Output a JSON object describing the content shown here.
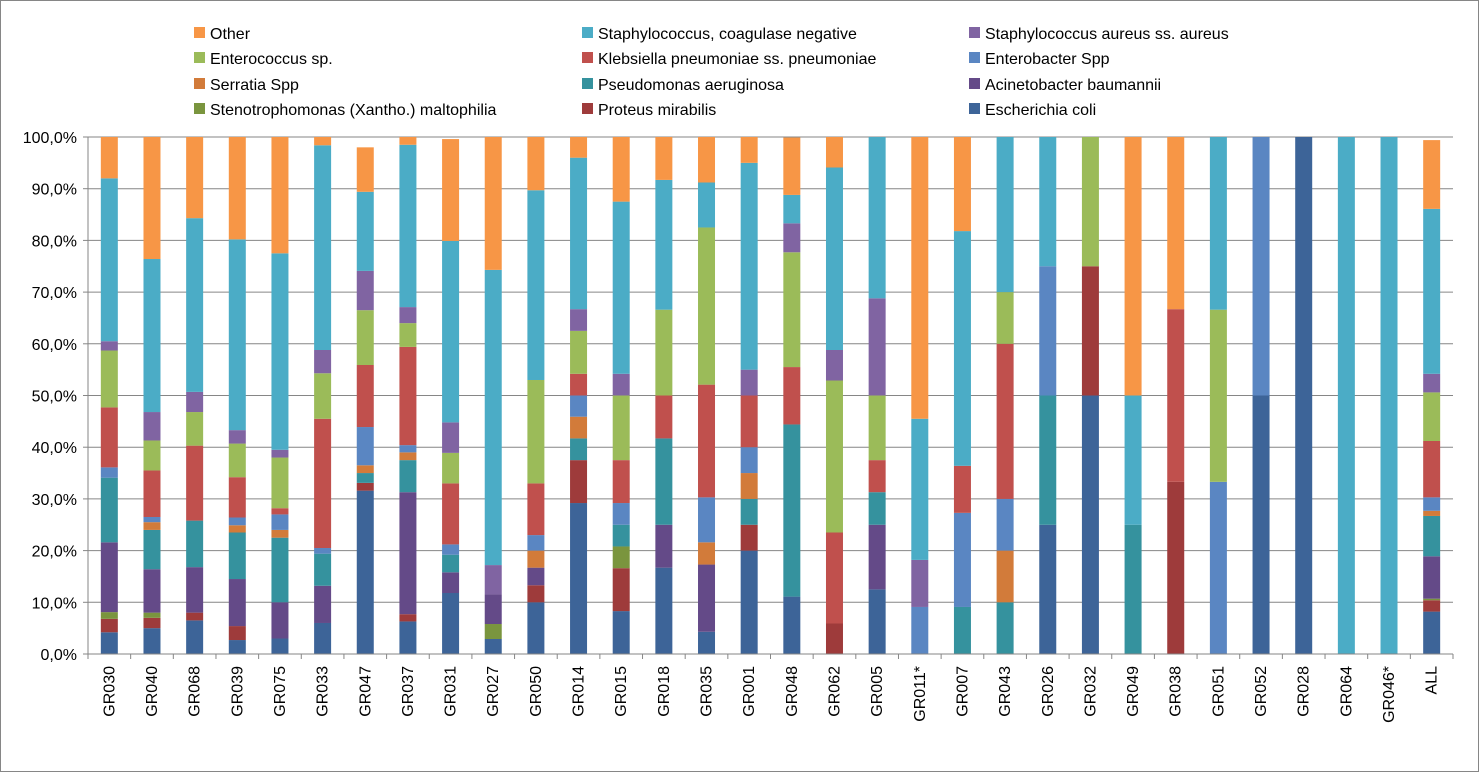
{
  "chart_data": {
    "type": "bar",
    "stacked": true,
    "normalized": true,
    "title": "",
    "xlabel": "",
    "ylabel": "",
    "ylim": [
      0,
      100
    ],
    "y_ticks": [
      "0,0%",
      "10,0%",
      "20,0%",
      "30,0%",
      "40,0%",
      "50,0%",
      "60,0%",
      "70,0%",
      "80,0%",
      "90,0%",
      "100,0%"
    ],
    "grid": true,
    "legend_position": "top",
    "categories": [
      "GR030",
      "GR040",
      "GR068",
      "GR039",
      "GR075",
      "GR033",
      "GR047",
      "GR037",
      "GR031",
      "GR027",
      "GR050",
      "GR014",
      "GR015",
      "GR018",
      "GR035",
      "GR001",
      "GR048",
      "GR062",
      "GR005",
      "GR011*",
      "GR007",
      "GR043",
      "GR026",
      "GR032",
      "GR049",
      "GR038",
      "GR051",
      "GR052",
      "GR028",
      "GR064",
      "GR046*",
      "ALL"
    ],
    "series": [
      {
        "name": "Escherichia coli",
        "color": "#3D6498",
        "values": [
          4.2,
          5.0,
          6.5,
          2.7,
          3.0,
          6.0,
          31.6,
          6.3,
          11.8,
          2.9,
          10.0,
          29.2,
          8.3,
          16.7,
          4.3,
          20.0,
          11.1,
          0.0,
          12.5,
          0.0,
          0.0,
          0.0,
          25.0,
          50.0,
          0.0,
          0.0,
          0.0,
          50.0,
          100.0,
          0.0,
          0.0,
          8.2
        ]
      },
      {
        "name": "Proteus mirabilis",
        "color": "#9E3B3B",
        "values": [
          2.6,
          2.0,
          1.5,
          2.7,
          0.0,
          0.0,
          1.5,
          1.4,
          0.0,
          0.0,
          3.3,
          8.3,
          8.3,
          0.0,
          0.0,
          5.0,
          0.0,
          5.9,
          0.0,
          0.0,
          0.0,
          0.0,
          0.0,
          25.0,
          0.0,
          33.3,
          0.0,
          0.0,
          0.0,
          0.0,
          0.0,
          2.2
        ]
      },
      {
        "name": "Stenotrophomonas (Xantho.) maltophilia",
        "color": "#7A953E",
        "values": [
          1.3,
          1.0,
          0.0,
          0.0,
          0.0,
          0.0,
          0.0,
          0.0,
          0.0,
          2.9,
          0.0,
          0.0,
          4.2,
          0.0,
          0.0,
          0.0,
          0.0,
          0.0,
          0.0,
          0.0,
          0.0,
          0.0,
          0.0,
          0.0,
          0.0,
          0.0,
          0.0,
          0.0,
          0.0,
          0.0,
          0.0,
          0.3
        ]
      },
      {
        "name": "Acinetobacter baumannii",
        "color": "#644A88",
        "values": [
          13.5,
          8.4,
          8.8,
          9.1,
          7.0,
          7.2,
          0.0,
          23.6,
          4.0,
          5.7,
          3.4,
          0.0,
          0.0,
          8.3,
          13.0,
          0.0,
          0.0,
          0.0,
          12.5,
          0.0,
          0.0,
          0.0,
          0.0,
          0.0,
          0.0,
          0.0,
          0.0,
          0.0,
          0.0,
          0.0,
          0.0,
          8.2
        ]
      },
      {
        "name": "Pseudomonas aeruginosa",
        "color": "#35929E",
        "values": [
          12.5,
          7.6,
          9.0,
          9.0,
          12.5,
          6.2,
          1.9,
          6.2,
          3.4,
          0.0,
          0.0,
          4.2,
          4.2,
          16.7,
          0.0,
          5.0,
          33.3,
          0.0,
          6.3,
          0.0,
          9.1,
          10.0,
          25.0,
          0.0,
          25.0,
          0.0,
          0.0,
          0.0,
          0.0,
          0.0,
          0.0,
          7.8
        ]
      },
      {
        "name": "Serratia Spp",
        "color": "#D27B3A",
        "values": [
          0.0,
          1.5,
          0.0,
          1.4,
          1.5,
          0.0,
          1.5,
          1.5,
          0.0,
          0.0,
          3.3,
          4.2,
          0.0,
          0.0,
          4.3,
          5.0,
          0.0,
          0.0,
          0.0,
          0.0,
          0.0,
          10.0,
          0.0,
          0.0,
          0.0,
          0.0,
          0.0,
          0.0,
          0.0,
          0.0,
          0.0,
          1.0
        ]
      },
      {
        "name": "Enterobacter Spp",
        "color": "#5A86C2",
        "values": [
          2.0,
          1.0,
          0.0,
          1.5,
          3.0,
          1.1,
          7.4,
          1.4,
          2.0,
          0.0,
          3.0,
          4.1,
          4.2,
          0.0,
          8.7,
          5.0,
          0.0,
          0.0,
          0.0,
          9.1,
          18.2,
          10.0,
          25.0,
          0.0,
          0.0,
          0.0,
          33.3,
          50.0,
          0.0,
          0.0,
          0.0,
          2.6
        ]
      },
      {
        "name": "Klebsiella pneumoniae ss. pneumoniae",
        "color": "#C0504D",
        "values": [
          11.6,
          9.0,
          14.5,
          7.8,
          1.2,
          25.0,
          12.0,
          19.0,
          11.8,
          0.0,
          10.0,
          4.2,
          8.3,
          8.3,
          21.8,
          10.0,
          11.1,
          17.6,
          6.2,
          0.0,
          9.1,
          30.0,
          0.0,
          0.0,
          0.0,
          33.4,
          0.0,
          0.0,
          0.0,
          0.0,
          0.0,
          10.9
        ]
      },
      {
        "name": "Enterococcus sp.",
        "color": "#9BBB59",
        "values": [
          11.0,
          5.8,
          6.5,
          6.5,
          9.8,
          8.8,
          10.6,
          4.6,
          5.9,
          0.0,
          20.0,
          8.3,
          12.5,
          16.6,
          30.4,
          0.0,
          22.2,
          29.4,
          12.5,
          0.0,
          0.0,
          10.0,
          0.0,
          25.0,
          0.0,
          0.0,
          33.3,
          0.0,
          0.0,
          0.0,
          0.0,
          9.4
        ]
      },
      {
        "name": "Staphylococcus aureus ss. aureus",
        "color": "#8064A2",
        "values": [
          1.8,
          5.5,
          3.9,
          2.6,
          1.5,
          4.5,
          7.6,
          3.1,
          5.9,
          5.7,
          0.0,
          4.2,
          4.2,
          0.0,
          0.0,
          5.0,
          5.6,
          5.9,
          18.8,
          9.1,
          0.0,
          0.0,
          0.0,
          0.0,
          0.0,
          0.0,
          0.0,
          0.0,
          0.0,
          0.0,
          0.0,
          3.6
        ]
      },
      {
        "name": "Staphylococcus, coagulase negative",
        "color": "#4BACC6",
        "values": [
          31.5,
          29.6,
          33.6,
          36.9,
          38.0,
          39.6,
          15.3,
          31.4,
          35.1,
          57.1,
          36.7,
          29.3,
          33.3,
          25.1,
          8.7,
          40.0,
          5.5,
          35.3,
          31.2,
          27.3,
          45.4,
          30.0,
          25.0,
          0.0,
          25.0,
          0.0,
          33.4,
          0.0,
          0.0,
          100.0,
          100.0,
          31.9
        ]
      },
      {
        "name": "Other",
        "color": "#F79646",
        "values": [
          8.0,
          23.6,
          15.7,
          19.8,
          22.5,
          1.6,
          8.6,
          1.5,
          19.7,
          25.7,
          10.3,
          4.0,
          12.5,
          8.3,
          8.8,
          5.0,
          11.1,
          5.9,
          0.0,
          54.5,
          18.2,
          0.0,
          0.0,
          0.0,
          50.0,
          33.3,
          0.0,
          0.0,
          0.0,
          0.0,
          0.0,
          13.3
        ]
      }
    ]
  }
}
